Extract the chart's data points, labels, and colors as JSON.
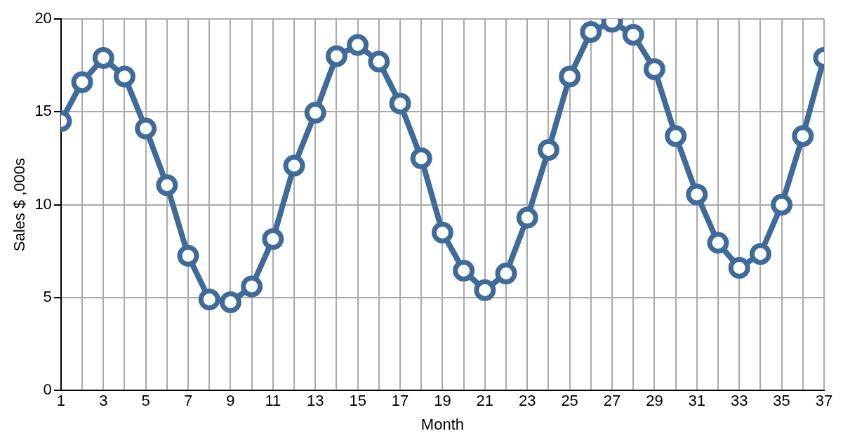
{
  "chart_data": {
    "type": "line",
    "xlabel": "Month",
    "ylabel": "Sales $ ,000s",
    "x": [
      1,
      2,
      3,
      4,
      5,
      6,
      7,
      8,
      9,
      10,
      11,
      12,
      13,
      14,
      15,
      16,
      17,
      18,
      19,
      20,
      21,
      22,
      23,
      24,
      25,
      26,
      27,
      28,
      29,
      30,
      31,
      32,
      33,
      34,
      35,
      36,
      37
    ],
    "series": [
      {
        "color": "#3f6b9b",
        "values": [
          14.5,
          16.6,
          17.9,
          16.9,
          14.1,
          11.05,
          7.25,
          4.9,
          4.75,
          5.6,
          8.15,
          12.1,
          14.95,
          18.0,
          18.6,
          17.7,
          15.45,
          12.5,
          8.5,
          6.45,
          5.4,
          6.3,
          9.3,
          12.95,
          16.9,
          19.3,
          19.85,
          19.15,
          17.3,
          13.7,
          10.55,
          7.95,
          6.6,
          7.35,
          10.0,
          13.7,
          17.9
        ]
      }
    ],
    "xlim": [
      1,
      37
    ],
    "xticks": [
      1,
      {
        "value": 2,
        "label": null
      },
      3,
      {
        "value": 4,
        "label": null
      },
      5,
      {
        "value": 6,
        "label": null
      },
      7,
      {
        "value": 8,
        "label": null
      },
      9,
      {
        "value": 10,
        "label": null
      },
      11,
      {
        "value": 12,
        "label": null
      },
      13,
      {
        "value": 14,
        "label": null
      },
      15,
      {
        "value": 16,
        "label": null
      },
      17,
      {
        "value": 18,
        "label": null
      },
      19,
      {
        "value": 20,
        "label": null
      },
      21,
      {
        "value": 22,
        "label": null
      },
      23,
      {
        "value": 24,
        "label": null
      },
      25,
      {
        "value": 26,
        "label": null
      },
      27,
      {
        "value": 28,
        "label": null
      },
      29,
      {
        "value": 30,
        "label": null
      },
      31,
      {
        "value": 32,
        "label": null
      },
      33,
      {
        "value": 34,
        "label": null
      },
      35,
      {
        "value": 36,
        "label": null
      },
      37
    ],
    "ylim": [
      0,
      20
    ],
    "yticks": [
      0,
      5,
      10,
      15,
      20
    ],
    "grid": true,
    "marker": "circle",
    "line_style": "solid",
    "legend": false
  }
}
